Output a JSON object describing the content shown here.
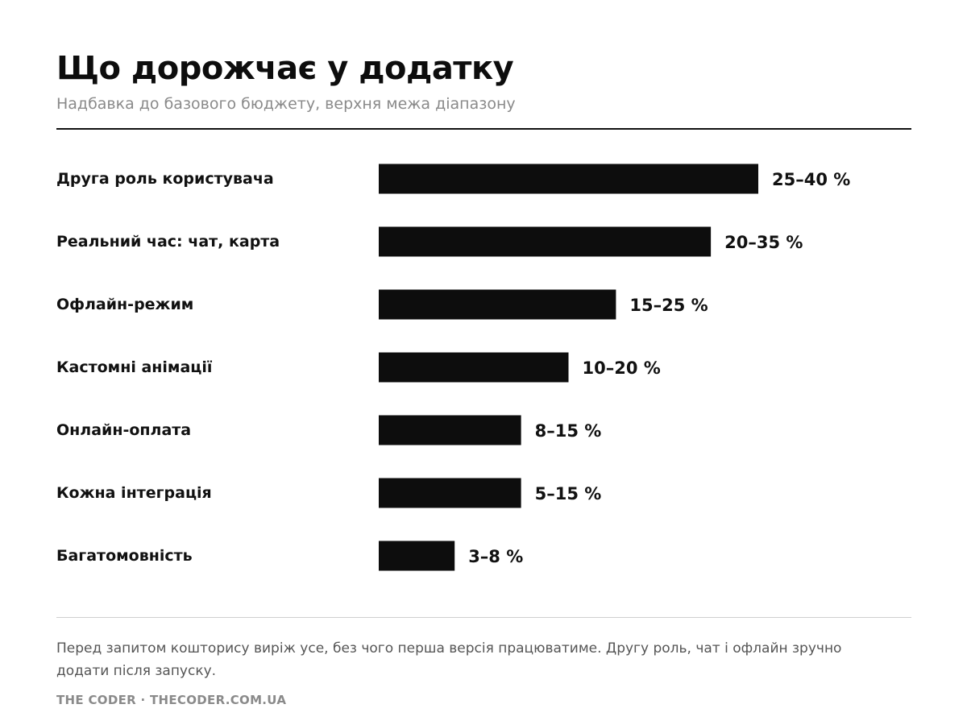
{
  "title": "Що дорожчає у додатку",
  "subtitle": "Надбавка до базового бюджету, верхня межа діапазону",
  "note": "Перед запитом кошторису виріж усе, без чого перша версія працюватиме. Другу роль, чат і офлайн зручно додати після запуску.",
  "source": "THE CODER · THECODER.COM.UA",
  "colors": {
    "bar": "#0d0d0d",
    "text": "#111111",
    "muted": "#8a8a8a"
  },
  "chart_data": {
    "type": "bar",
    "orientation": "horizontal",
    "categories": [
      "Друга роль користувача",
      "Реальний час: чат, карта",
      "Офлайн-режим",
      "Кастомні анімації",
      "Онлайн-оплата",
      "Кожна інтеграція",
      "Багатомовність"
    ],
    "values": [
      40,
      35,
      25,
      20,
      15,
      15,
      8
    ],
    "value_labels": [
      "25–40 %",
      "20–35 %",
      "15–25 %",
      "10–20 %",
      "8–15 %",
      "5–15 %",
      "3–8 %"
    ],
    "xlim": [
      0,
      40
    ],
    "grid": false,
    "legend": "none"
  }
}
